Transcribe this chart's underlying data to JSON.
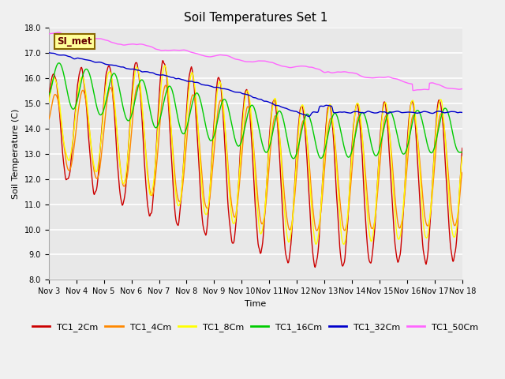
{
  "title": "Soil Temperatures Set 1",
  "xlabel": "Time",
  "ylabel": "Soil Temperature (C)",
  "ylim": [
    8.0,
    18.5
  ],
  "ylim_display": [
    8.0,
    18.0
  ],
  "yticks": [
    8.0,
    9.0,
    10.0,
    11.0,
    12.0,
    13.0,
    14.0,
    15.0,
    16.0,
    17.0,
    18.0
  ],
  "bg_color": "#e8e8e8",
  "fig_color": "#f0f0f0",
  "grid_color": "#ffffff",
  "legend_labels": [
    "TC1_2Cm",
    "TC1_4Cm",
    "TC1_8Cm",
    "TC1_16Cm",
    "TC1_32Cm",
    "TC1_50Cm"
  ],
  "series_colors": [
    "#cc0000",
    "#ff8800",
    "#ffff00",
    "#00cc00",
    "#0000cc",
    "#ff66ff"
  ],
  "line_width": 1.0,
  "annotation_text": "SI_met",
  "x_start": 3,
  "x_end": 18,
  "xtick_days": [
    3,
    4,
    5,
    6,
    7,
    8,
    9,
    10,
    11,
    12,
    13,
    14,
    15,
    16,
    17,
    18
  ],
  "title_fontsize": 11,
  "axis_label_fontsize": 8,
  "tick_fontsize": 7,
  "legend_fontsize": 8
}
